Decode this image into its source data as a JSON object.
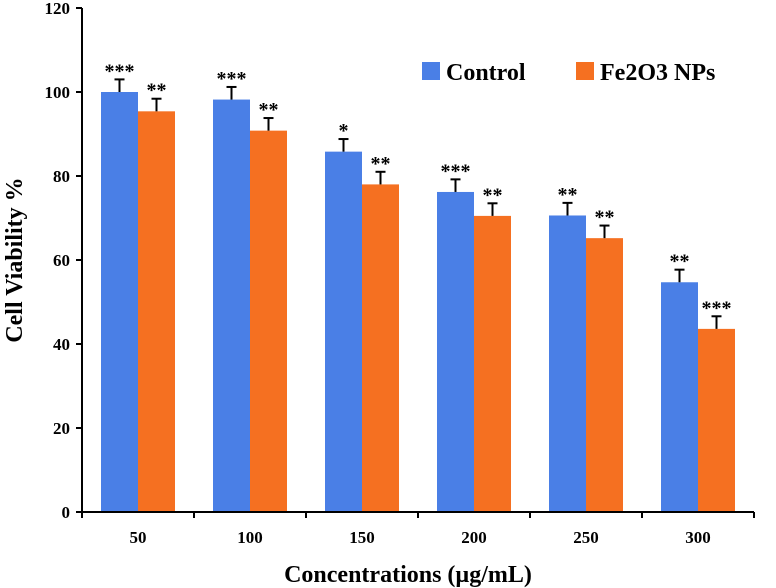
{
  "chart_data": {
    "type": "bar",
    "title": "",
    "xlabel": "Concentrations (µg/mL)",
    "ylabel": "Cell Viability %",
    "ylim": [
      0,
      120
    ],
    "yticks": [
      "0",
      "20",
      "40",
      "60",
      "80",
      "100",
      "120"
    ],
    "categories": [
      "50",
      "100",
      "150",
      "200",
      "250",
      "300"
    ],
    "legend_position": "top-right",
    "grid": false,
    "series": [
      {
        "name": "Control",
        "color": "#4a7fe6",
        "values": [
          100,
          98.2,
          85.8,
          76.2,
          70.6,
          54.7
        ],
        "errors": [
          3.0,
          3.0,
          3.0,
          3.0,
          3.0,
          3.0
        ],
        "significance": [
          "***",
          "***",
          "*",
          "***",
          "**",
          "**"
        ]
      },
      {
        "name": "Fe2O3 NPs",
        "color": "#f57021",
        "values": [
          95.4,
          90.8,
          78.0,
          70.5,
          65.2,
          43.6
        ],
        "errors": [
          3.0,
          3.0,
          3.0,
          3.0,
          3.0,
          3.0
        ],
        "significance": [
          "**",
          "**",
          "**",
          "**",
          "**",
          "***"
        ]
      }
    ]
  }
}
